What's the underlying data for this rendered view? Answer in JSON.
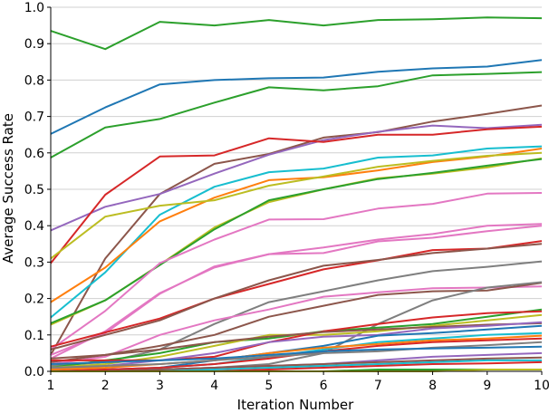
{
  "chart_data": {
    "type": "line",
    "title": "",
    "xlabel": "Iteration Number",
    "ylabel": "Average Success Rate",
    "x": [
      1,
      2,
      3,
      4,
      5,
      6,
      7,
      8,
      9,
      10
    ],
    "xlim": [
      1,
      10
    ],
    "ylim": [
      0,
      1.0
    ],
    "x_ticks": [
      "1",
      "2",
      "3",
      "4",
      "5",
      "6",
      "7",
      "8",
      "9",
      "10"
    ],
    "y_ticks": [
      "0.0",
      "0.1",
      "0.2",
      "0.3",
      "0.4",
      "0.5",
      "0.6",
      "0.7",
      "0.8",
      "0.9",
      "1.0"
    ],
    "grid": "horizontal",
    "legend": "none",
    "series": [
      {
        "color": "#2ca02c",
        "values": [
          0.935,
          0.885,
          0.96,
          0.95,
          0.965,
          0.95,
          0.965,
          0.967,
          0.972,
          0.97
        ]
      },
      {
        "color": "#1f77b4",
        "values": [
          0.652,
          0.725,
          0.788,
          0.8,
          0.805,
          0.807,
          0.823,
          0.832,
          0.837,
          0.855
        ]
      },
      {
        "color": "#2ca02c",
        "values": [
          0.587,
          0.67,
          0.693,
          0.738,
          0.78,
          0.772,
          0.783,
          0.813,
          0.817,
          0.822
        ]
      },
      {
        "color": "#8c564b",
        "values": [
          0.045,
          0.31,
          0.487,
          0.57,
          0.597,
          0.642,
          0.657,
          0.686,
          0.707,
          0.73
        ]
      },
      {
        "color": "#9467bd",
        "values": [
          0.387,
          0.452,
          0.487,
          0.543,
          0.595,
          0.635,
          0.658,
          0.675,
          0.668,
          0.677
        ]
      },
      {
        "color": "#d62728",
        "values": [
          0.297,
          0.485,
          0.59,
          0.593,
          0.64,
          0.63,
          0.65,
          0.65,
          0.665,
          0.672
        ]
      },
      {
        "color": "#17becf",
        "values": [
          0.148,
          0.272,
          0.43,
          0.507,
          0.547,
          0.557,
          0.587,
          0.593,
          0.612,
          0.618
        ]
      },
      {
        "color": "#ff7f0e",
        "values": [
          0.19,
          0.285,
          0.412,
          0.477,
          0.525,
          0.533,
          0.552,
          0.575,
          0.59,
          0.612
        ]
      },
      {
        "color": "#bcbd22",
        "values": [
          0.31,
          0.425,
          0.455,
          0.47,
          0.51,
          0.535,
          0.562,
          0.578,
          0.592,
          0.6
        ]
      },
      {
        "color": "#bcbd22",
        "values": [
          0.128,
          0.195,
          0.293,
          0.395,
          0.465,
          0.5,
          0.53,
          0.543,
          0.56,
          0.585
        ]
      },
      {
        "color": "#2ca02c",
        "values": [
          0.132,
          0.195,
          0.292,
          0.39,
          0.47,
          0.5,
          0.528,
          0.545,
          0.565,
          0.583
        ]
      },
      {
        "color": "#e377c2",
        "values": [
          0.06,
          0.166,
          0.297,
          0.362,
          0.417,
          0.418,
          0.447,
          0.46,
          0.488,
          0.49
        ]
      },
      {
        "color": "#e377c2",
        "values": [
          0.045,
          0.105,
          0.213,
          0.288,
          0.322,
          0.34,
          0.362,
          0.377,
          0.4,
          0.405
        ]
      },
      {
        "color": "#e377c2",
        "values": [
          0.035,
          0.11,
          0.215,
          0.285,
          0.322,
          0.325,
          0.357,
          0.367,
          0.385,
          0.4
        ]
      },
      {
        "color": "#d62728",
        "values": [
          0.068,
          0.107,
          0.145,
          0.2,
          0.24,
          0.28,
          0.305,
          0.333,
          0.337,
          0.358
        ]
      },
      {
        "color": "#8c564b",
        "values": [
          0.06,
          0.1,
          0.14,
          0.2,
          0.25,
          0.29,
          0.306,
          0.325,
          0.337,
          0.35
        ]
      },
      {
        "color": "#7f7f7f",
        "values": [
          0.015,
          0.025,
          0.06,
          0.13,
          0.19,
          0.22,
          0.25,
          0.275,
          0.287,
          0.302
        ]
      },
      {
        "color": "#e377c2",
        "values": [
          0.02,
          0.04,
          0.1,
          0.14,
          0.17,
          0.205,
          0.217,
          0.228,
          0.23,
          0.233
        ]
      },
      {
        "color": "#8c564b",
        "values": [
          0.025,
          0.045,
          0.07,
          0.1,
          0.15,
          0.18,
          0.21,
          0.22,
          0.222,
          0.243
        ]
      },
      {
        "color": "#7f7f7f",
        "values": [
          0.0,
          0.0,
          0.005,
          0.01,
          0.02,
          0.05,
          0.13,
          0.195,
          0.23,
          0.245
        ]
      },
      {
        "color": "#2ca02c",
        "values": [
          0.01,
          0.03,
          0.05,
          0.08,
          0.09,
          0.11,
          0.12,
          0.13,
          0.15,
          0.17
        ]
      },
      {
        "color": "#bcbd22",
        "values": [
          0.01,
          0.02,
          0.04,
          0.07,
          0.1,
          0.1,
          0.11,
          0.125,
          0.14,
          0.155
        ]
      },
      {
        "color": "#d62728",
        "values": [
          0.03,
          0.03,
          0.03,
          0.04,
          0.08,
          0.11,
          0.13,
          0.148,
          0.16,
          0.165
        ]
      },
      {
        "color": "#8c564b",
        "values": [
          0.035,
          0.045,
          0.06,
          0.08,
          0.095,
          0.108,
          0.115,
          0.122,
          0.128,
          0.132
        ]
      },
      {
        "color": "#9467bd",
        "values": [
          0.005,
          0.015,
          0.03,
          0.05,
          0.08,
          0.095,
          0.1,
          0.118,
          0.125,
          0.135
        ]
      },
      {
        "color": "#1f77b4",
        "values": [
          0.0,
          0.005,
          0.01,
          0.03,
          0.05,
          0.07,
          0.098,
          0.105,
          0.115,
          0.125
        ]
      },
      {
        "color": "#17becf",
        "values": [
          0.0,
          0.0,
          0.01,
          0.02,
          0.04,
          0.06,
          0.08,
          0.09,
          0.1,
          0.105
        ]
      },
      {
        "color": "#ff7f0e",
        "values": [
          0.005,
          0.01,
          0.02,
          0.03,
          0.05,
          0.065,
          0.075,
          0.085,
          0.09,
          0.098
        ]
      },
      {
        "color": "#d62728",
        "values": [
          0.0,
          0.005,
          0.01,
          0.02,
          0.035,
          0.055,
          0.07,
          0.08,
          0.085,
          0.09
        ]
      },
      {
        "color": "#7f7f7f",
        "values": [
          0.01,
          0.015,
          0.02,
          0.03,
          0.04,
          0.05,
          0.055,
          0.065,
          0.072,
          0.08
        ]
      },
      {
        "color": "#1f77b4",
        "values": [
          0.02,
          0.025,
          0.03,
          0.035,
          0.045,
          0.055,
          0.06,
          0.063,
          0.065,
          0.068
        ]
      },
      {
        "color": "#9467bd",
        "values": [
          0.0,
          0.0,
          0.005,
          0.01,
          0.015,
          0.02,
          0.03,
          0.04,
          0.045,
          0.05
        ]
      },
      {
        "color": "#8c564b",
        "values": [
          0.0,
          0.0,
          0.005,
          0.01,
          0.015,
          0.02,
          0.025,
          0.03,
          0.035,
          0.038
        ]
      },
      {
        "color": "#17becf",
        "values": [
          0.0,
          0.0,
          0.0,
          0.005,
          0.01,
          0.015,
          0.02,
          0.025,
          0.03,
          0.03
        ]
      },
      {
        "color": "#d62728",
        "values": [
          0.0,
          0.0,
          0.0,
          0.0,
          0.005,
          0.01,
          0.015,
          0.02,
          0.022,
          0.025
        ]
      },
      {
        "color": "#2ca02c",
        "values": [
          0.0,
          0.0,
          0.0,
          0.0,
          0.0,
          0.0,
          0.005,
          0.005,
          0.005,
          0.005
        ]
      },
      {
        "color": "#bcbd22",
        "values": [
          0.0,
          0.0,
          0.0,
          0.0,
          0.0,
          0.0,
          0.0,
          0.0,
          0.005,
          0.005
        ]
      }
    ]
  }
}
